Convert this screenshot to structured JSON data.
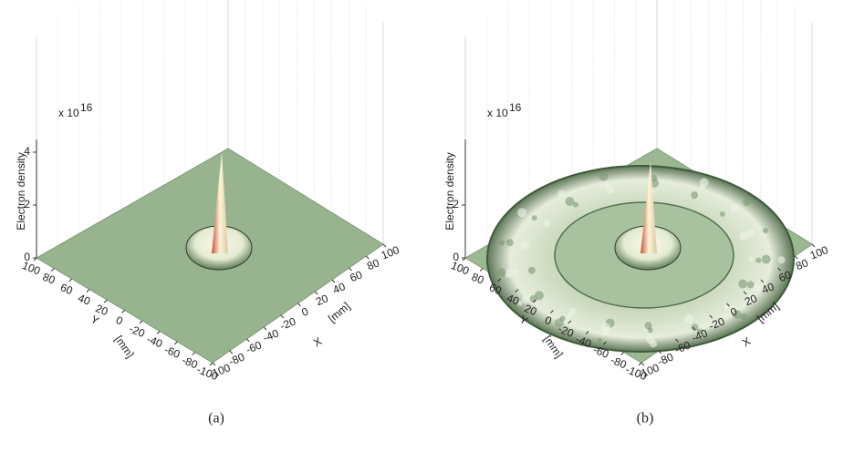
{
  "panels": [
    {
      "zlabel": "Electron density",
      "zscale": "x 10",
      "zexp": "16",
      "zticks": [
        0,
        2,
        4
      ],
      "xticks": [
        -100,
        -80,
        -60,
        -40,
        -20,
        0,
        20,
        40,
        60,
        80,
        100
      ],
      "xlabel": "X",
      "xunit": "[mm]",
      "yticks": [
        100,
        80,
        60,
        40,
        20,
        0,
        -20,
        -40,
        -60,
        -80,
        -100
      ],
      "ylabel": "Y",
      "yunit": "[mm]",
      "caption": "(a)"
    },
    {
      "zlabel": "Electron density",
      "zscale": "x 10",
      "zexp": "16",
      "zticks": [
        0,
        2
      ],
      "xticks": [
        -100,
        -80,
        -60,
        -40,
        -20,
        0,
        20,
        40,
        60,
        80,
        100
      ],
      "xlabel": "X",
      "xunit": "[mm]",
      "yticks": [
        100,
        80,
        60,
        40,
        20,
        0,
        -20,
        -40,
        -60,
        -80,
        -100
      ],
      "ylabel": "Y",
      "yunit": "[mm]",
      "caption": "(b)"
    }
  ]
}
